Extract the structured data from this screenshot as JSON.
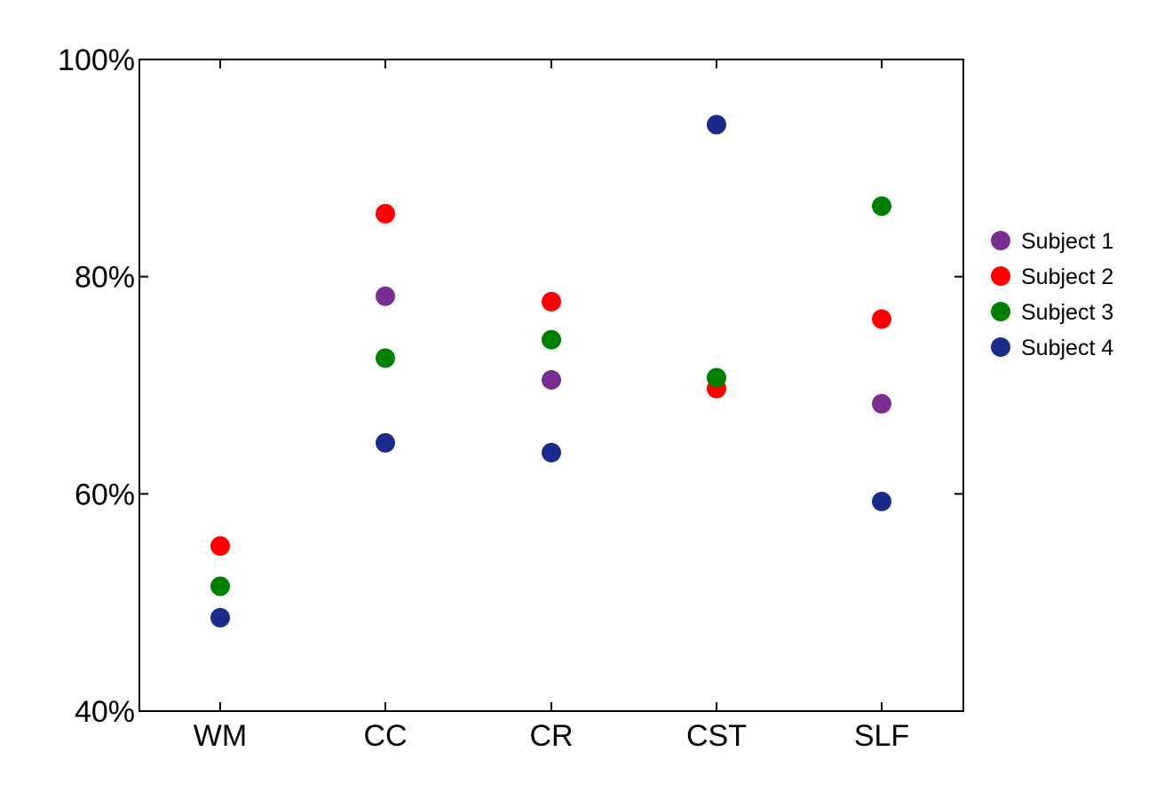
{
  "chart_data": {
    "type": "scatter",
    "title": "",
    "xlabel": "",
    "ylabel": "",
    "categories": [
      "WM",
      "CC",
      "CR",
      "CST",
      "SLF"
    ],
    "ylim": [
      40,
      100
    ],
    "y_ticks": [
      "40%",
      "60%",
      "80%",
      "100%"
    ],
    "y_tick_values": [
      40,
      60,
      80,
      100
    ],
    "grid": false,
    "legend_position": "right",
    "series": [
      {
        "name": "Subject 1",
        "color": "#7a2d91",
        "values": [
          null,
          78.2,
          70.5,
          null,
          68.3
        ]
      },
      {
        "name": "Subject 2",
        "color": "#ff0000",
        "values": [
          55.2,
          85.8,
          77.7,
          69.7,
          76.1
        ]
      },
      {
        "name": "Subject 3",
        "color": "#008000",
        "values": [
          51.5,
          72.5,
          74.2,
          70.7,
          86.5
        ]
      },
      {
        "name": "Subject 4",
        "color": "#1a2b8c",
        "values": [
          48.6,
          64.7,
          63.8,
          94.0,
          59.3
        ]
      }
    ]
  }
}
